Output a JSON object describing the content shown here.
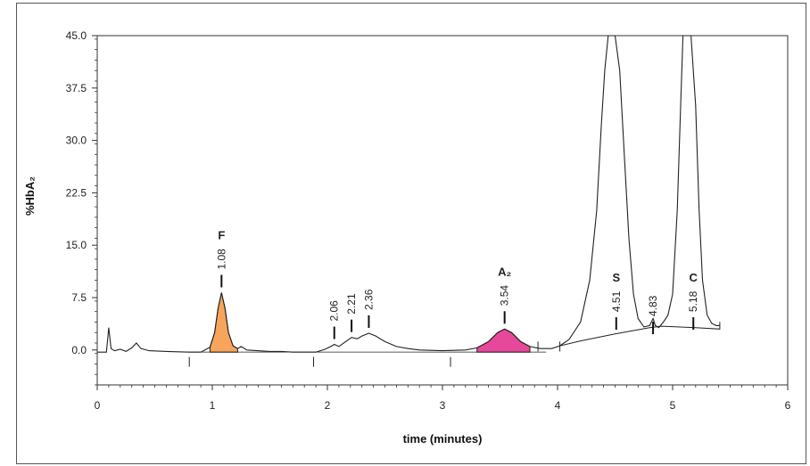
{
  "chart_data": {
    "type": "line",
    "title": "",
    "xlabel": "time (minutes)",
    "ylabel": "%HbA₂",
    "xlim": [
      0,
      6
    ],
    "ylim": [
      -5,
      45
    ],
    "x_ticks": [
      "0",
      "1",
      "2",
      "3",
      "4",
      "5",
      "6"
    ],
    "y_ticks": [
      "0.0",
      "7.5",
      "15.0",
      "22.5",
      "30.0",
      "37.5",
      "45.0"
    ],
    "grid": false,
    "peaks": [
      {
        "name": "F",
        "rt": "1.08",
        "x": 1.08,
        "height": 8.2,
        "fill": "#f7a55a"
      },
      {
        "name": "",
        "rt": "2.06",
        "x": 2.06,
        "height": 0.8
      },
      {
        "name": "",
        "rt": "2.21",
        "x": 2.21,
        "height": 1.8
      },
      {
        "name": "",
        "rt": "2.36",
        "x": 2.36,
        "height": 2.4
      },
      {
        "name": "A₂",
        "rt": "3.54",
        "x": 3.54,
        "height": 3.0,
        "fill": "#e8489a"
      },
      {
        "name": "S",
        "rt": "4.51",
        "x": 4.51,
        "height": 45
      },
      {
        "name": "",
        "rt": "4.83",
        "x": 4.83,
        "height": 1.5
      },
      {
        "name": "C",
        "rt": "5.18",
        "x": 5.18,
        "height": 45
      }
    ],
    "baseline_markers_x": [
      0.8,
      1.88,
      3.07,
      3.83,
      4.02
    ],
    "trace": [
      [
        0.0,
        -0.3
      ],
      [
        0.08,
        -0.3
      ],
      [
        0.1,
        3.2
      ],
      [
        0.12,
        0.2
      ],
      [
        0.15,
        -0.1
      ],
      [
        0.2,
        0.1
      ],
      [
        0.25,
        -0.2
      ],
      [
        0.3,
        0.3
      ],
      [
        0.34,
        1.0
      ],
      [
        0.38,
        0.2
      ],
      [
        0.45,
        -0.1
      ],
      [
        0.6,
        -0.2
      ],
      [
        0.8,
        -0.3
      ],
      [
        0.9,
        -0.3
      ],
      [
        0.98,
        0.4
      ],
      [
        1.02,
        2.5
      ],
      [
        1.05,
        6.0
      ],
      [
        1.08,
        8.2
      ],
      [
        1.11,
        6.0
      ],
      [
        1.14,
        2.5
      ],
      [
        1.18,
        0.6
      ],
      [
        1.22,
        0.2
      ],
      [
        1.25,
        0.5
      ],
      [
        1.3,
        0.0
      ],
      [
        1.5,
        -0.2
      ],
      [
        1.6,
        -0.2
      ],
      [
        1.7,
        -0.3
      ],
      [
        1.9,
        -0.3
      ],
      [
        1.98,
        0.1
      ],
      [
        2.04,
        0.6
      ],
      [
        2.06,
        0.8
      ],
      [
        2.1,
        0.5
      ],
      [
        2.15,
        1.1
      ],
      [
        2.21,
        1.8
      ],
      [
        2.26,
        1.6
      ],
      [
        2.3,
        2.0
      ],
      [
        2.36,
        2.4
      ],
      [
        2.42,
        2.0
      ],
      [
        2.5,
        1.2
      ],
      [
        2.6,
        0.5
      ],
      [
        2.7,
        0.2
      ],
      [
        2.8,
        0.0
      ],
      [
        3.0,
        -0.1
      ],
      [
        3.2,
        0.0
      ],
      [
        3.3,
        0.3
      ],
      [
        3.4,
        1.2
      ],
      [
        3.48,
        2.5
      ],
      [
        3.54,
        3.0
      ],
      [
        3.6,
        2.5
      ],
      [
        3.68,
        1.2
      ],
      [
        3.76,
        0.5
      ],
      [
        3.85,
        0.2
      ],
      [
        3.95,
        0.2
      ],
      [
        4.02,
        0.6
      ],
      [
        4.1,
        1.5
      ],
      [
        4.2,
        4.0
      ],
      [
        4.28,
        10.0
      ],
      [
        4.34,
        20.0
      ],
      [
        4.38,
        32.0
      ],
      [
        4.41,
        40.0
      ],
      [
        4.44,
        45.0
      ],
      [
        4.5,
        45.0
      ],
      [
        4.54,
        40.0
      ],
      [
        4.58,
        28.0
      ],
      [
        4.62,
        16.0
      ],
      [
        4.66,
        8.0
      ],
      [
        4.7,
        4.5
      ],
      [
        4.75,
        3.3
      ],
      [
        4.8,
        3.5
      ],
      [
        4.83,
        4.5
      ],
      [
        4.85,
        3.5
      ],
      [
        4.88,
        3.2
      ],
      [
        4.92,
        4.0
      ],
      [
        4.96,
        5.0
      ],
      [
        5.0,
        8.0
      ],
      [
        5.04,
        20.0
      ],
      [
        5.07,
        35.0
      ],
      [
        5.09,
        45.0
      ],
      [
        5.16,
        45.0
      ],
      [
        5.2,
        35.0
      ],
      [
        5.23,
        20.0
      ],
      [
        5.26,
        10.0
      ],
      [
        5.3,
        5.0
      ],
      [
        5.34,
        3.8
      ],
      [
        5.38,
        3.5
      ],
      [
        5.41,
        3.5
      ]
    ],
    "hull": [
      [
        4.02,
        0.6
      ],
      [
        4.2,
        1.3
      ],
      [
        4.5,
        2.3
      ],
      [
        4.8,
        3.2
      ],
      [
        4.9,
        3.4
      ],
      [
        5.2,
        3.2
      ],
      [
        5.41,
        3.0
      ],
      [
        5.41,
        4.0
      ]
    ]
  }
}
